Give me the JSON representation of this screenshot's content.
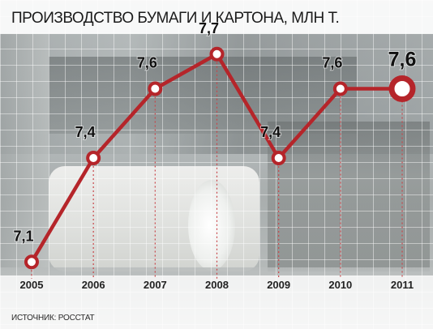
{
  "title": "ПРОИЗВОДСТВО БУМАГИ И КАРТОНА, МЛН Т.",
  "source": "ИСТОЧНИК: РОССТАТ",
  "colors": {
    "line": "#b5252a",
    "marker_fill": "#ffffff",
    "drop_line": "#c8464a"
  },
  "chart_data": {
    "type": "line",
    "title": "ПРОИЗВОДСТВО БУМАГИ И КАРТОНА, МЛН Т.",
    "categories": [
      "2005",
      "2006",
      "2007",
      "2008",
      "2009",
      "2010",
      "2011"
    ],
    "values": [
      7.1,
      7.4,
      7.6,
      7.7,
      7.4,
      7.6,
      7.6
    ],
    "data_labels": [
      "7,1",
      "7,4",
      "7,6",
      "7,7",
      "7,4",
      "7,6",
      "7,6"
    ],
    "ylim": [
      7.0,
      7.8
    ],
    "grid": true,
    "highlight_last": true
  }
}
